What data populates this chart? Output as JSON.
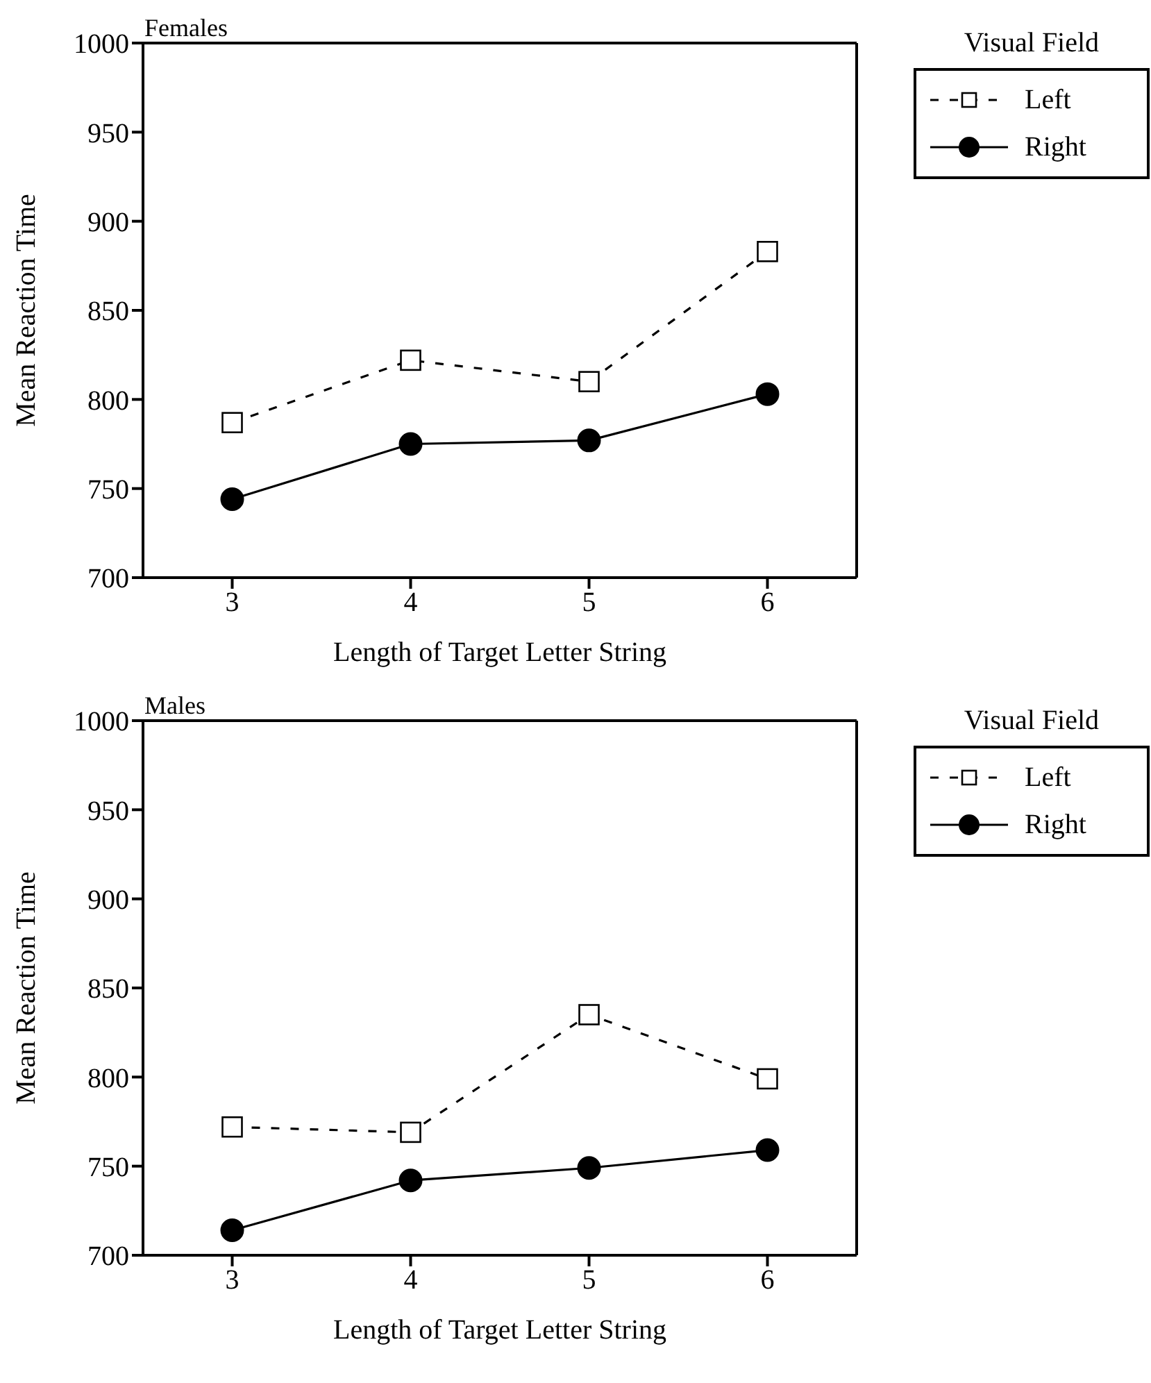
{
  "chart_data": [
    {
      "type": "line",
      "title": "Females",
      "xlabel": "Length of Target Letter String",
      "ylabel": "Mean Reaction Time",
      "legend_title": "Visual Field",
      "legend": "top right",
      "x": [
        3,
        4,
        5,
        6
      ],
      "xlim": [
        2.5,
        6.5
      ],
      "xticks": [
        3,
        4,
        5,
        6
      ],
      "ylim": [
        700,
        1000
      ],
      "yticks": [
        700,
        750,
        800,
        850,
        900,
        950,
        1000
      ],
      "series": [
        {
          "name": "Left",
          "color": "#000000",
          "values": [
            787,
            822,
            810,
            883
          ],
          "marker": "square",
          "line_style": "dashed"
        },
        {
          "name": "Right",
          "color": "#000000",
          "values": [
            744,
            775,
            777,
            803
          ],
          "marker": "circle",
          "line_style": "solid"
        }
      ]
    },
    {
      "type": "line",
      "title": "Males",
      "xlabel": "Length of Target Letter String",
      "ylabel": "Mean Reaction Time",
      "legend_title": "Visual Field",
      "legend": "top right",
      "x": [
        3,
        4,
        5,
        6
      ],
      "xlim": [
        2.5,
        6.5
      ],
      "xticks": [
        3,
        4,
        5,
        6
      ],
      "ylim": [
        700,
        1000
      ],
      "yticks": [
        700,
        750,
        800,
        850,
        900,
        950,
        1000
      ],
      "series": [
        {
          "name": "Left",
          "color": "#000000",
          "values": [
            772,
            769,
            835,
            799
          ],
          "marker": "square",
          "line_style": "dashed"
        },
        {
          "name": "Right",
          "color": "#000000",
          "values": [
            714,
            742,
            749,
            759
          ],
          "marker": "circle",
          "line_style": "solid"
        }
      ]
    }
  ]
}
